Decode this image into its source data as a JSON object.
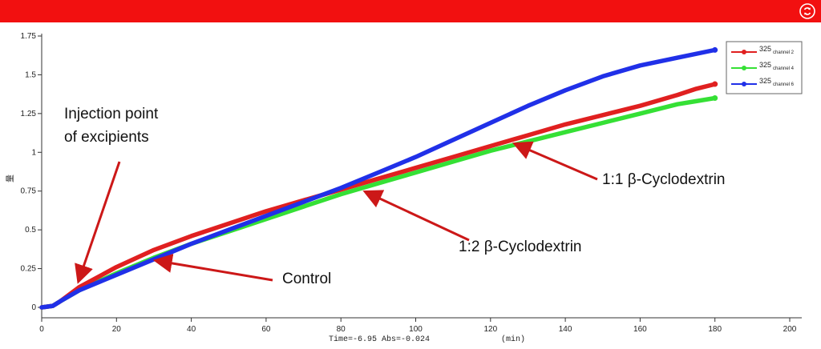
{
  "window": {
    "refresh_icon": "refresh-icon",
    "bar_color": "#f21010"
  },
  "chart_data": {
    "type": "line",
    "title": "",
    "xlabel": "(min)",
    "ylabel": "量",
    "xlim": [
      0,
      205
    ],
    "ylim": [
      -0.05,
      1.75
    ],
    "xticks": [
      0,
      20,
      40,
      60,
      80,
      100,
      120,
      140,
      160,
      180,
      200
    ],
    "yticks": [
      0,
      0.25,
      0.5,
      0.75,
      1,
      1.25,
      1.5,
      1.75
    ],
    "ytick_labels": [
      "0",
      "0.25",
      "0.5",
      "0.75",
      "1",
      "1.25",
      "1.5",
      "1.75"
    ],
    "status_text": "Time=-6.95  Abs=-0.024",
    "series": [
      {
        "name": "325 channel 2",
        "legend_main": "325",
        "legend_sub": "channel 2",
        "color": "#e02020",
        "x": [
          0,
          3,
          5,
          10,
          20,
          30,
          40,
          50,
          60,
          70,
          80,
          90,
          100,
          110,
          120,
          130,
          140,
          150,
          160,
          170,
          175,
          180
        ],
        "y": [
          0,
          0.01,
          0.04,
          0.13,
          0.26,
          0.37,
          0.46,
          0.54,
          0.62,
          0.69,
          0.76,
          0.83,
          0.9,
          0.97,
          1.04,
          1.11,
          1.18,
          1.24,
          1.3,
          1.37,
          1.41,
          1.44
        ]
      },
      {
        "name": "325 channel 4",
        "legend_main": "325",
        "legend_sub": "channel 4",
        "color": "#35e035",
        "x": [
          0,
          3,
          5,
          10,
          20,
          30,
          40,
          50,
          60,
          70,
          80,
          90,
          100,
          110,
          120,
          130,
          140,
          150,
          160,
          170,
          175,
          180
        ],
        "y": [
          0,
          0.01,
          0.04,
          0.11,
          0.22,
          0.32,
          0.41,
          0.49,
          0.57,
          0.65,
          0.73,
          0.8,
          0.87,
          0.94,
          1.01,
          1.07,
          1.13,
          1.19,
          1.25,
          1.31,
          1.33,
          1.35
        ]
      },
      {
        "name": "325 channel 6",
        "legend_main": "325",
        "legend_sub": "channel 6",
        "color": "#2030e8",
        "x": [
          0,
          3,
          5,
          10,
          20,
          30,
          40,
          50,
          60,
          70,
          80,
          90,
          100,
          110,
          120,
          130,
          140,
          150,
          160,
          170,
          180
        ],
        "y": [
          0,
          0.01,
          0.04,
          0.11,
          0.21,
          0.31,
          0.41,
          0.5,
          0.59,
          0.68,
          0.77,
          0.87,
          0.97,
          1.08,
          1.19,
          1.3,
          1.4,
          1.49,
          1.56,
          1.61,
          1.66
        ]
      }
    ],
    "annotations": [
      {
        "id": "injection",
        "lines": [
          "Injection point",
          "of excipients"
        ],
        "point_x": 10,
        "point_y": 0.18
      },
      {
        "id": "control",
        "lines": [
          "Control"
        ],
        "point_x": 31,
        "point_y": 0.3
      },
      {
        "id": "ratio12",
        "lines": [
          "1:2 β-Cyclodextrin"
        ],
        "point_x": 87,
        "point_y": 0.74
      },
      {
        "id": "ratio11",
        "lines": [
          "1:1 β-Cyclodextrin"
        ],
        "point_x": 127,
        "point_y": 1.05
      }
    ]
  }
}
